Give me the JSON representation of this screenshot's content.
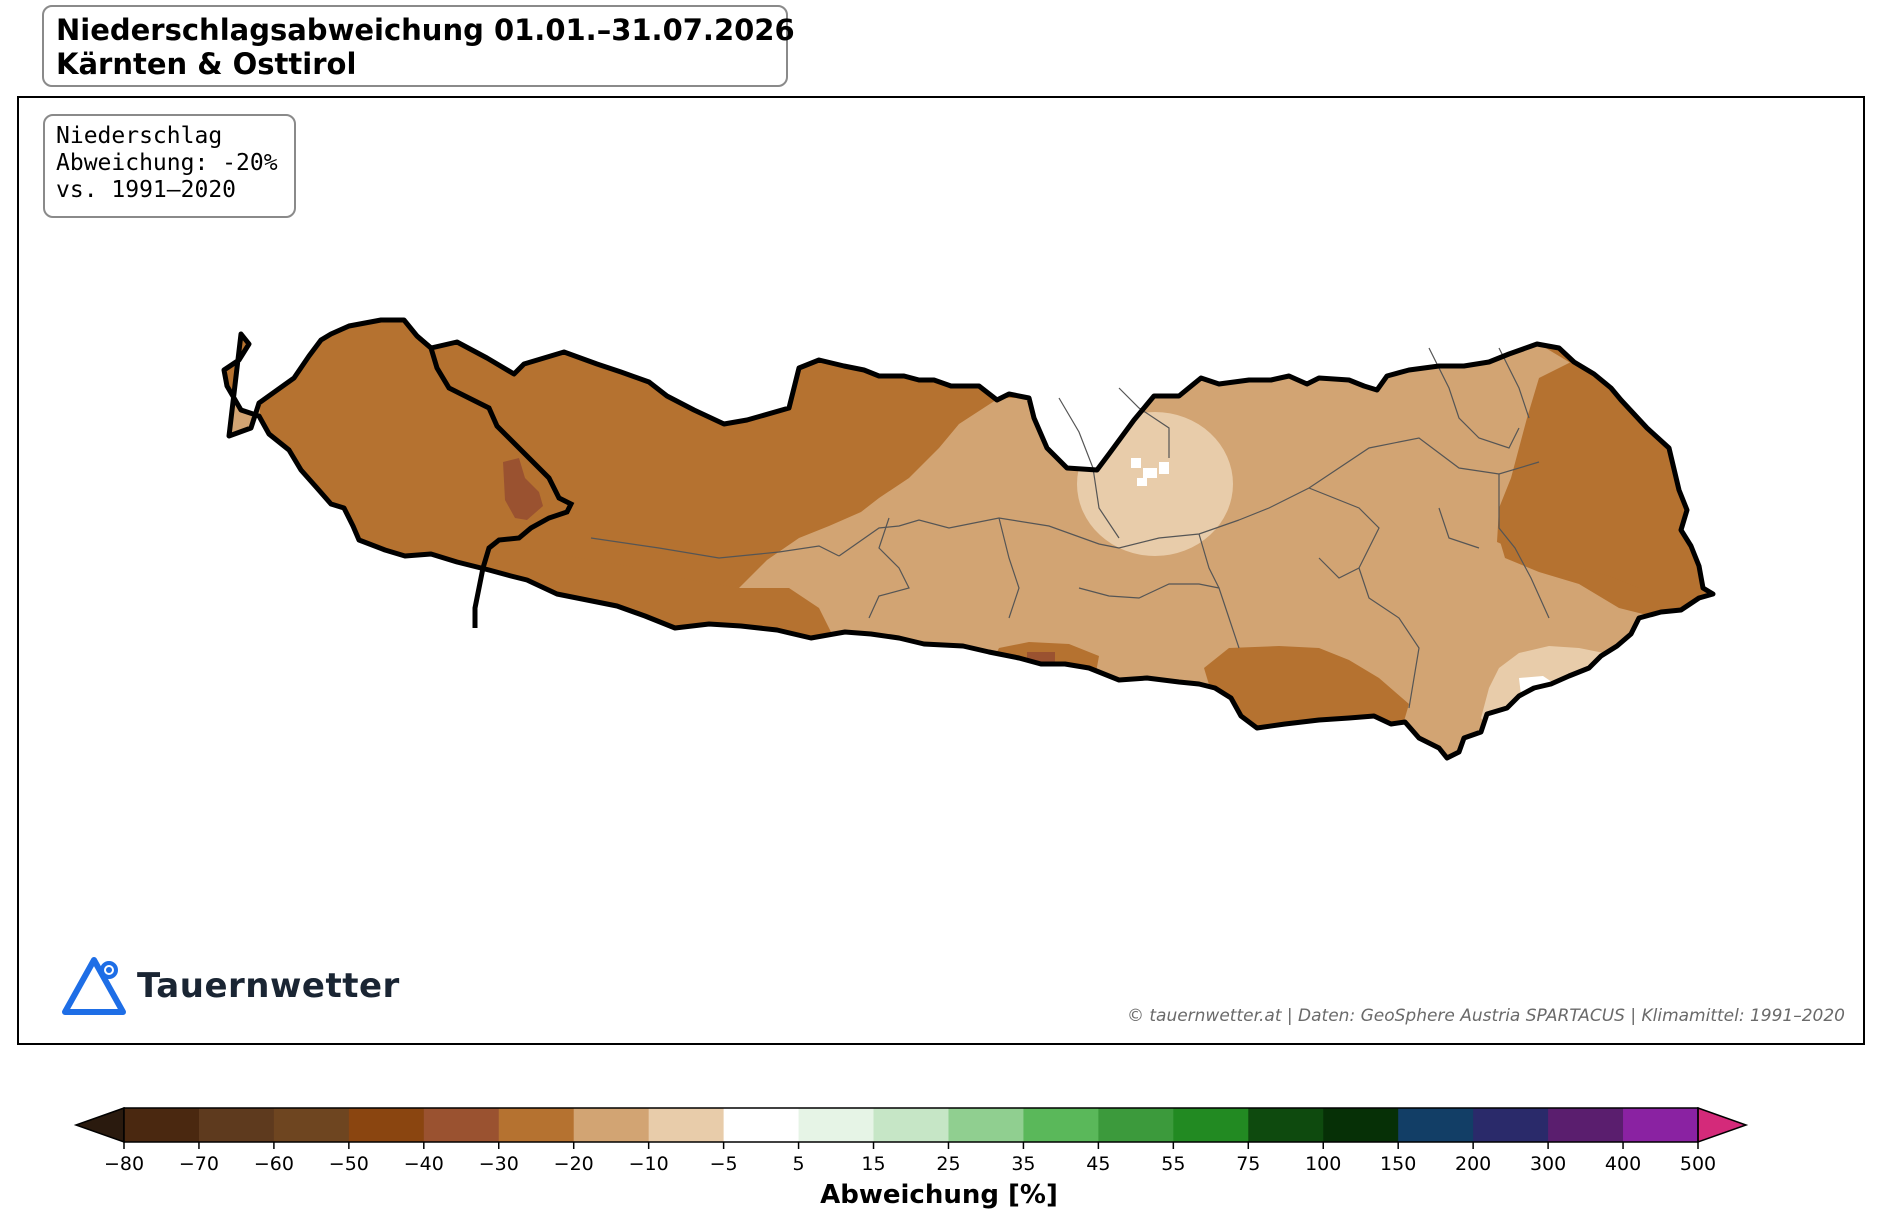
{
  "title": {
    "line1": "Niederschlagsabweichung 01.01.–31.07.2026",
    "line2": "Kärnten & Osttirol"
  },
  "info": {
    "line1": "Niederschlag",
    "line2": "Abweichung: -20%",
    "line3": "vs. 1991–2020"
  },
  "brand": {
    "name": "Tauernwetter",
    "icon": "triangle-logo-icon",
    "color": "#1e6ee6"
  },
  "credit": "© tauernwetter.at | Daten: GeoSphere Austria SPARTACUS | Klimamittel: 1991–2020",
  "colorbar": {
    "label": "Abweichung [%]",
    "ticks": [
      "−80",
      "−70",
      "−60",
      "−50",
      "−40",
      "−30",
      "−20",
      "−10",
      "−5",
      "5",
      "15",
      "25",
      "35",
      "45",
      "55",
      "75",
      "100",
      "150",
      "200",
      "300",
      "400",
      "500"
    ],
    "under_color": "#2a1a0e",
    "over_color": "#d42a7a",
    "colors": [
      "#4a2810",
      "#5e3a1e",
      "#6e4520",
      "#8a4510",
      "#9a5230",
      "#b57230",
      "#d2a473",
      "#e8ccaa",
      "#ffffff",
      "#e6f4e6",
      "#c6e6c6",
      "#90cf90",
      "#5ab85a",
      "#3c9a3c",
      "#228a22",
      "#0e4a0e",
      "#063006",
      "#123e66",
      "#2a2a6a",
      "#5a1e6e",
      "#8a22a2"
    ]
  },
  "map": {
    "regions": [
      {
        "name": "Osttirol",
        "deviation_class": "-30 bis -20"
      },
      {
        "name": "Kärnten",
        "deviation_class": "-20 bis -10"
      }
    ],
    "colors": {
      "dark": "#b57230",
      "medium": "#d2a473",
      "light": "#e8ccaa",
      "very_dark": "#9a5230",
      "white": "#ffffff",
      "border": "#000000",
      "district": "#555555"
    }
  }
}
